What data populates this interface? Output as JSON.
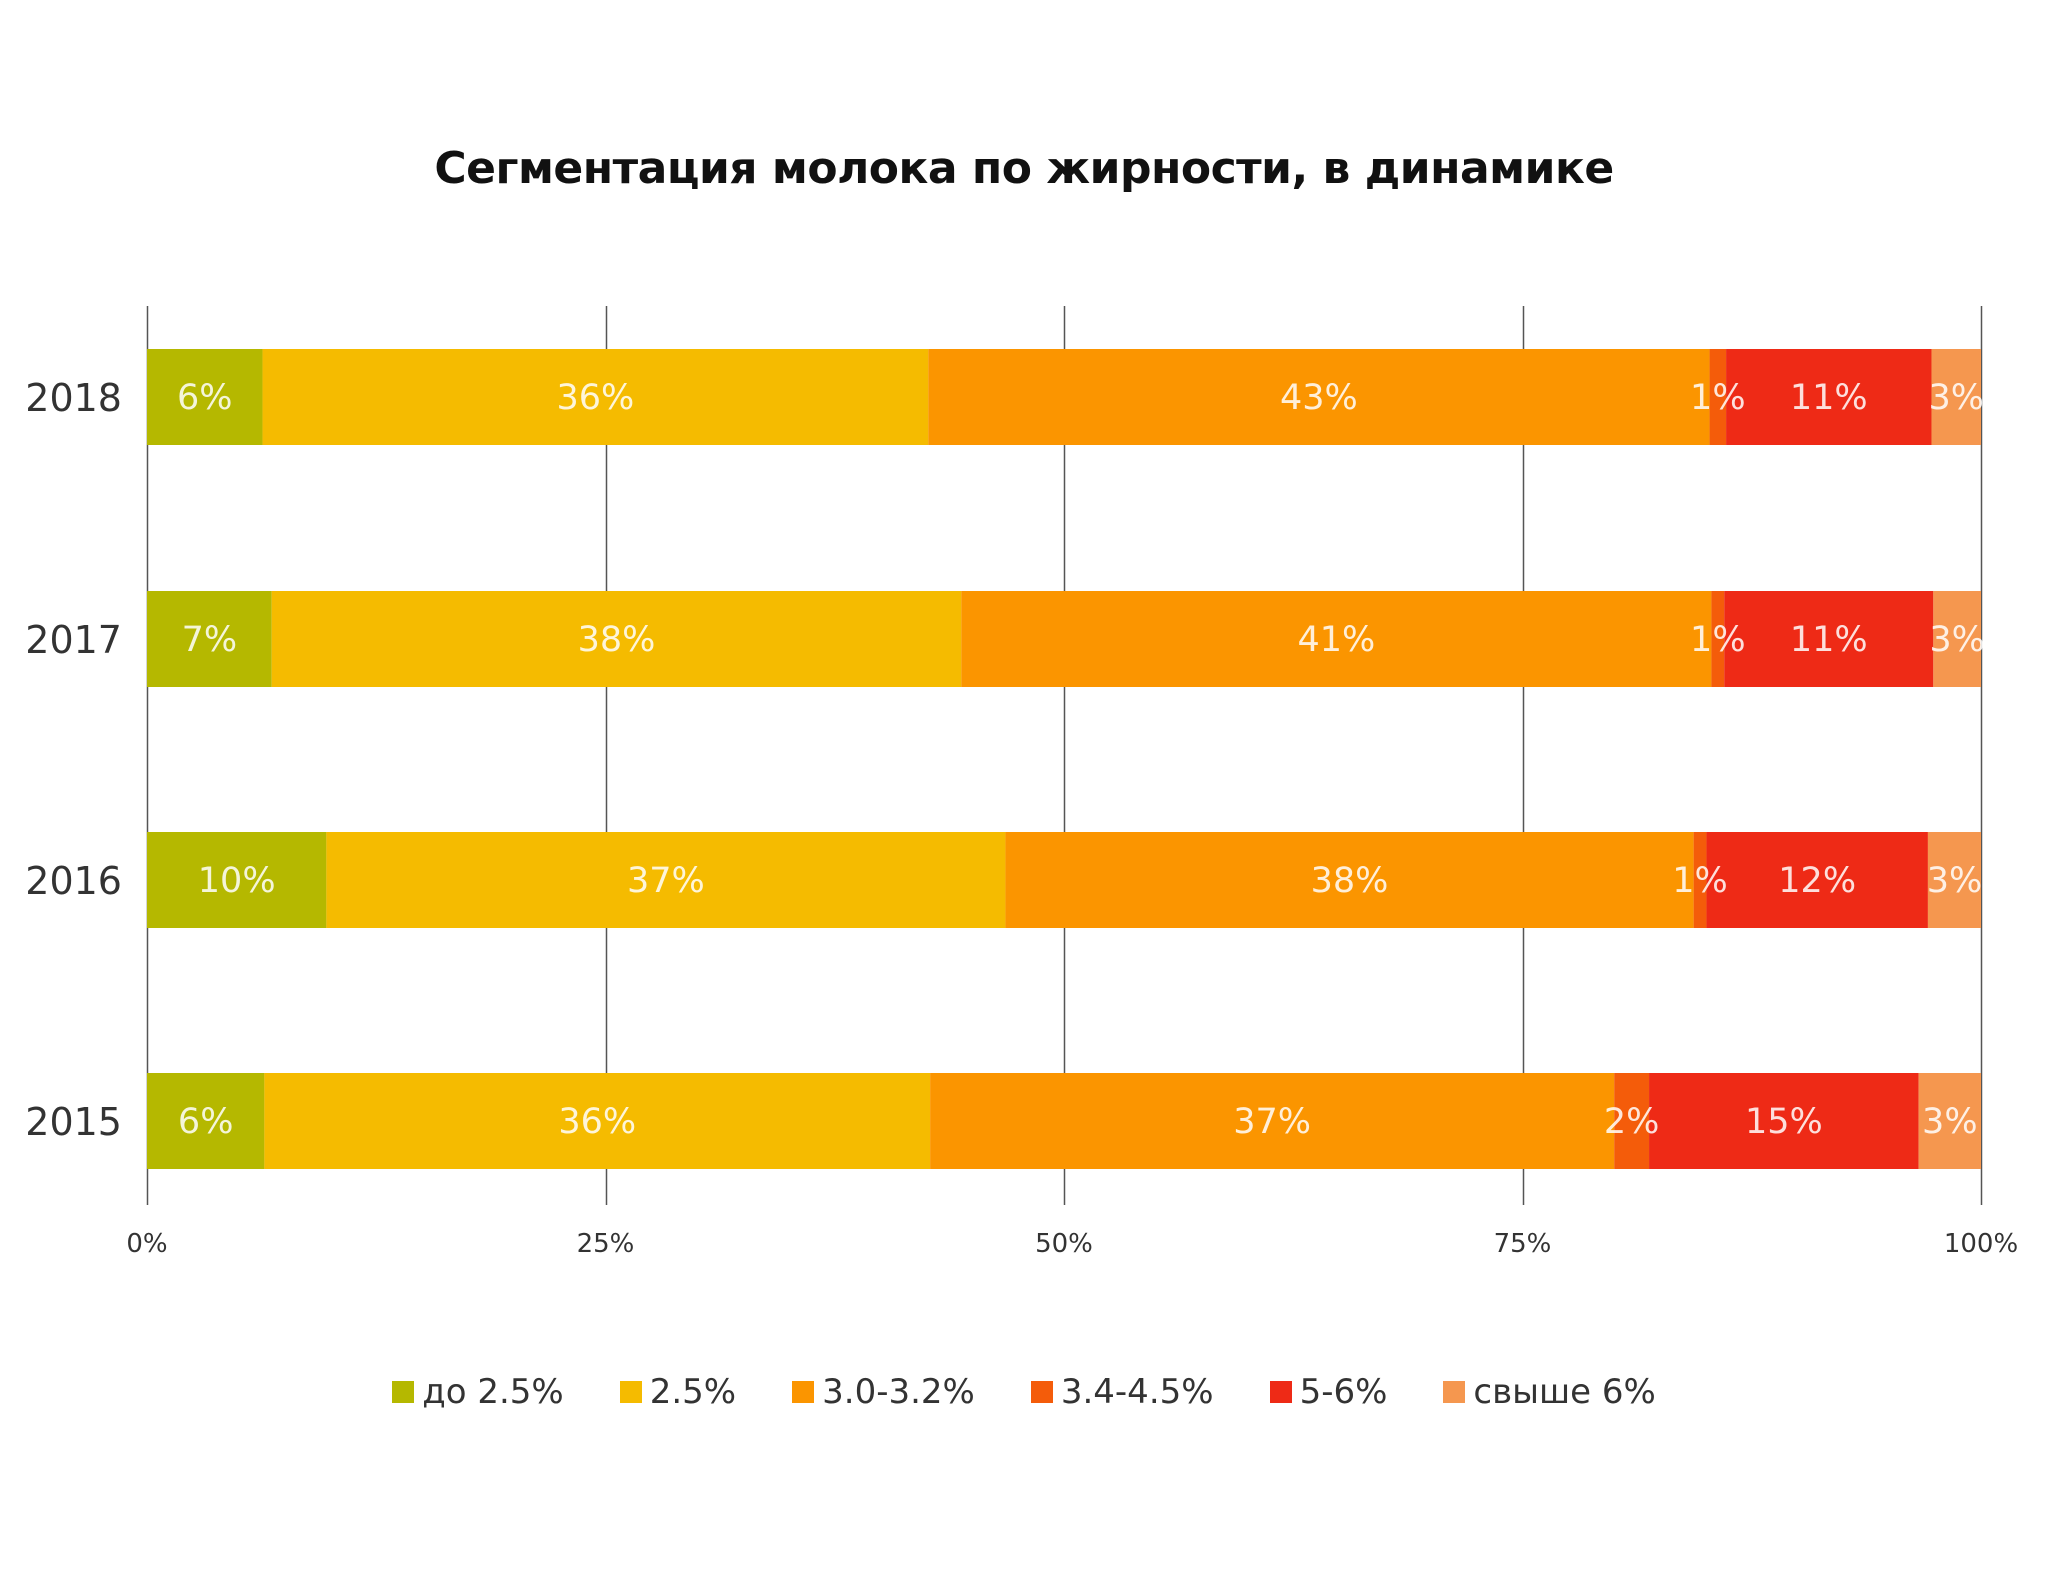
{
  "chart_data": {
    "type": "bar",
    "orientation": "horizontal",
    "stacked": true,
    "title": "Сегментация молока по жирности, в динамике",
    "xlabel": "",
    "ylabel": "",
    "xlim": [
      0,
      100
    ],
    "grid": true,
    "legend_position": "bottom",
    "categories": [
      "2018",
      "2017",
      "2016",
      "2015"
    ],
    "x_ticks": [
      "0%",
      "25%",
      "50%",
      "75%",
      "100%"
    ],
    "series": [
      {
        "name": "до 2.5%",
        "color": "#b5b800",
        "values": [
          6.3,
          6.8,
          9.8,
          6.4
        ],
        "labels": [
          "6%",
          "7%",
          "10%",
          "6%"
        ]
      },
      {
        "name": "2.5%",
        "color": "#f5bb00",
        "values": [
          36.3,
          37.6,
          37.1,
          36.3
        ],
        "labels": [
          "36%",
          "38%",
          "37%",
          "36%"
        ]
      },
      {
        "name": "3.0-3.2%",
        "color": "#fb9500",
        "values": [
          42.6,
          40.9,
          37.6,
          37.3
        ],
        "labels": [
          "43%",
          "41%",
          "38%",
          "37%"
        ]
      },
      {
        "name": "3.4-4.5%",
        "color": "#f45c0a",
        "values": [
          0.9,
          0.7,
          0.7,
          1.9
        ],
        "labels": [
          "1%",
          "1%",
          "1%",
          "2%"
        ]
      },
      {
        "name": "5-6%",
        "color": "#ee2a16",
        "values": [
          11.2,
          11.4,
          12.1,
          14.7
        ],
        "labels": [
          "11%",
          "11%",
          "12%",
          "15%"
        ]
      },
      {
        "name": "свыше 6%",
        "color": "#f5974f",
        "values": [
          2.7,
          2.6,
          2.9,
          3.4
        ],
        "labels": [
          "3%",
          "3%",
          "3%",
          "3%"
        ]
      }
    ]
  }
}
